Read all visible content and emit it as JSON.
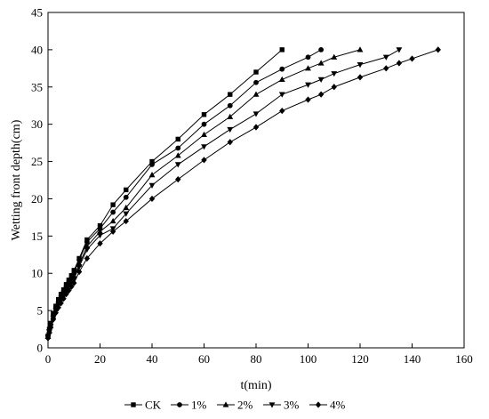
{
  "chart_data": {
    "type": "line",
    "xlabel": "t(min)",
    "ylabel": "Wetting front depth(cm)",
    "xlim": [
      0,
      160
    ],
    "ylim": [
      0,
      45
    ],
    "xticks": [
      0,
      20,
      40,
      60,
      80,
      100,
      120,
      140,
      160
    ],
    "yticks": [
      0,
      5,
      10,
      15,
      20,
      25,
      30,
      35,
      40,
      45
    ],
    "grid": false,
    "legend_position": "bottom",
    "series": [
      {
        "name": "CK",
        "marker": "square",
        "x": [
          0,
          0.5,
          1,
          2,
          3,
          4,
          5,
          6,
          7,
          8,
          9,
          10,
          12,
          15,
          20,
          25,
          30,
          40,
          50,
          60,
          70,
          80,
          90
        ],
        "y": [
          1.6,
          2.5,
          3.3,
          4.6,
          5.6,
          6.5,
          7.2,
          7.8,
          8.5,
          9.1,
          9.7,
          10.4,
          12.0,
          14.5,
          16.4,
          19.2,
          21.2,
          25.0,
          28.0,
          31.3,
          34.0,
          37.0,
          40.0
        ]
      },
      {
        "name": "1%",
        "marker": "circle",
        "x": [
          0,
          0.5,
          1,
          2,
          3,
          4,
          5,
          6,
          7,
          8,
          9,
          10,
          12,
          15,
          20,
          25,
          30,
          40,
          50,
          60,
          70,
          80,
          90,
          100,
          105
        ],
        "y": [
          1.6,
          2.4,
          3.1,
          4.4,
          5.4,
          6.2,
          7.0,
          7.6,
          8.2,
          8.9,
          9.4,
          10.0,
          11.8,
          14.2,
          16.0,
          18.2,
          20.2,
          24.6,
          26.8,
          30.0,
          32.5,
          35.6,
          37.4,
          39.0,
          40.0
        ]
      },
      {
        "name": "2%",
        "marker": "triangle-up",
        "x": [
          0,
          0.5,
          1,
          2,
          3,
          4,
          5,
          6,
          7,
          8,
          9,
          10,
          12,
          15,
          20,
          25,
          30,
          40,
          50,
          60,
          70,
          80,
          90,
          100,
          105,
          110,
          120
        ],
        "y": [
          1.5,
          2.3,
          3.0,
          4.2,
          5.2,
          6.0,
          6.8,
          7.4,
          8.0,
          8.6,
          9.1,
          9.6,
          11.2,
          13.6,
          15.6,
          17.0,
          18.8,
          23.2,
          25.8,
          28.6,
          31.0,
          34.0,
          36.0,
          37.5,
          38.2,
          39.0,
          40.0
        ]
      },
      {
        "name": "3%",
        "marker": "triangle-down",
        "x": [
          0,
          0.5,
          1,
          2,
          3,
          4,
          5,
          6,
          7,
          8,
          9,
          10,
          12,
          15,
          20,
          25,
          30,
          40,
          50,
          60,
          70,
          80,
          90,
          100,
          105,
          110,
          120,
          130,
          135
        ],
        "y": [
          1.4,
          2.2,
          2.9,
          4.0,
          5.0,
          5.8,
          6.5,
          7.1,
          7.7,
          8.3,
          8.8,
          9.3,
          10.9,
          13.2,
          15.1,
          16.0,
          18.0,
          21.8,
          24.6,
          27.0,
          29.3,
          31.4,
          34.0,
          35.3,
          36.0,
          36.8,
          38.0,
          39.0,
          40.0
        ]
      },
      {
        "name": "4%",
        "marker": "diamond",
        "x": [
          0,
          0.5,
          1,
          2,
          3,
          4,
          5,
          6,
          7,
          8,
          9,
          10,
          12,
          15,
          20,
          25,
          30,
          40,
          50,
          60,
          70,
          80,
          90,
          100,
          105,
          110,
          120,
          130,
          135,
          140,
          150
        ],
        "y": [
          1.3,
          2.0,
          2.7,
          3.8,
          4.7,
          5.4,
          6.0,
          6.6,
          7.2,
          7.7,
          8.2,
          8.7,
          10.2,
          12.0,
          14.0,
          15.6,
          17.0,
          20.0,
          22.6,
          25.2,
          27.6,
          29.6,
          31.8,
          33.3,
          34.0,
          35.0,
          36.3,
          37.5,
          38.2,
          38.8,
          40.0
        ]
      }
    ]
  }
}
